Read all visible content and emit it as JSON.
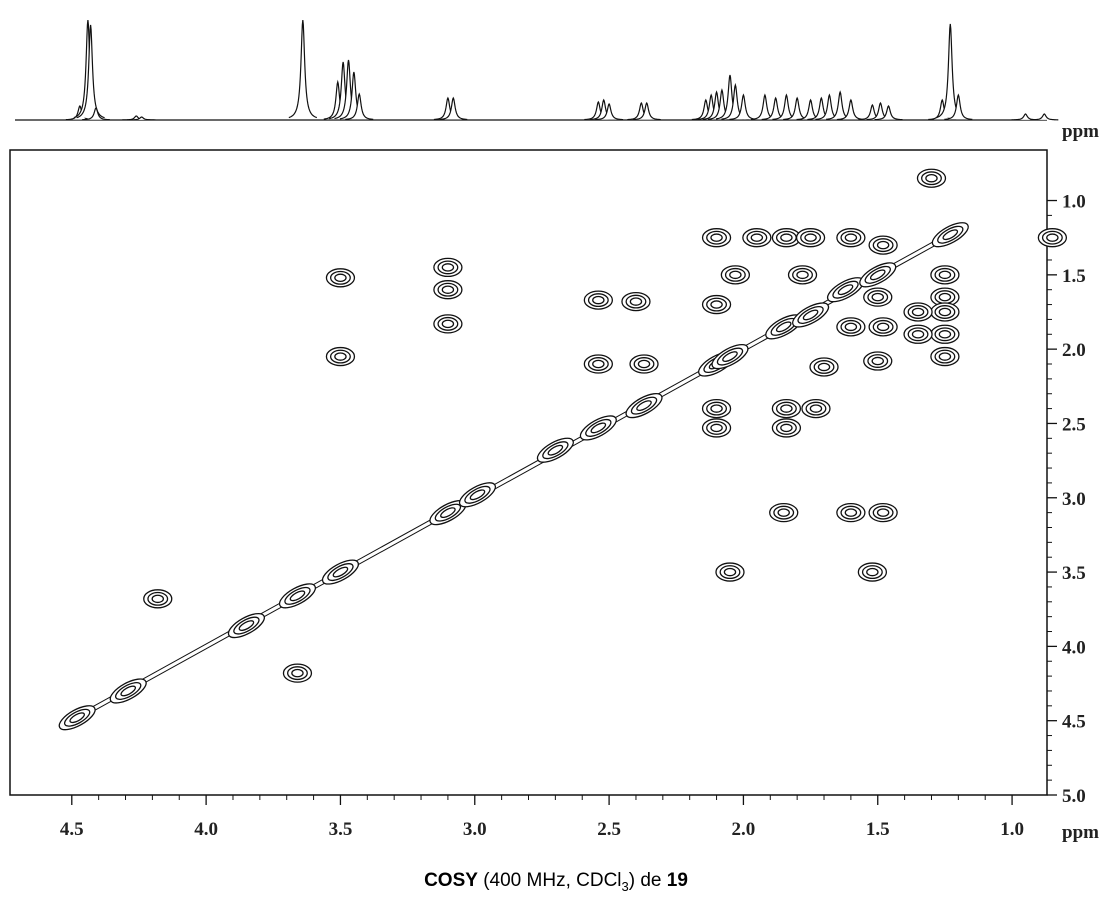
{
  "chart_data": {
    "type": "cosy",
    "caption": [
      "COSY",
      " (400 MHz, CDCl",
      "3",
      ") de ",
      "19"
    ],
    "x_label": "ppm",
    "y_label": "ppm",
    "xlim": [
      4.73,
      0.87
    ],
    "ylim": [
      0.66,
      5.0
    ],
    "xticks": [
      4.5,
      {
        "value": 4,
        "label": "4.0"
      },
      3.5,
      {
        "value": 3,
        "label": "3.0"
      },
      2.5,
      {
        "value": 2,
        "label": "2.0"
      },
      1.5,
      {
        "value": 1,
        "label": "1.0"
      }
    ],
    "yticks": [
      {
        "value": 1,
        "label": "1.0"
      },
      1.5,
      {
        "value": 2,
        "label": "2.0"
      },
      2.5,
      {
        "value": 3,
        "label": "3.0"
      },
      3.5,
      {
        "value": 4,
        "label": "4.0"
      },
      4.5,
      {
        "value": 5,
        "label": "5.0"
      }
    ],
    "spectrum": {
      "x": [
        4.47,
        4.44,
        4.43,
        4.41,
        4.26,
        4.24,
        3.64,
        3.51,
        3.49,
        3.47,
        3.45,
        3.43,
        3.1,
        3.08,
        2.54,
        2.52,
        2.5,
        2.38,
        2.36,
        2.14,
        2.12,
        2.1,
        2.08,
        2.05,
        2.03,
        2.0,
        1.92,
        1.88,
        1.84,
        1.8,
        1.75,
        1.71,
        1.68,
        1.64,
        1.6,
        1.52,
        1.49,
        1.46,
        1.26,
        1.23,
        1.2,
        0.95,
        0.88
      ],
      "values": [
        14,
        100,
        95,
        12,
        4,
        3,
        100,
        38,
        58,
        60,
        48,
        26,
        22,
        22,
        18,
        20,
        16,
        17,
        17,
        20,
        25,
        28,
        30,
        45,
        35,
        25,
        25,
        22,
        25,
        22,
        20,
        22,
        25,
        28,
        20,
        15,
        17,
        14,
        20,
        96,
        25,
        6,
        6
      ]
    },
    "peaks": {
      "x": [
        4.48,
        4.29,
        3.85,
        3.66,
        3.5,
        3.1,
        2.99,
        2.7,
        2.54,
        2.37,
        2.1,
        2.05,
        1.85,
        1.75,
        1.62,
        1.5,
        1.23,
        3.5,
        3.5,
        3.1,
        3.1,
        3.1,
        4.18,
        3.66,
        2.05,
        1.52,
        1.85,
        1.6,
        1.48,
        2.54,
        2.4,
        2.54,
        2.37,
        2.1,
        2.1,
        1.84,
        1.73,
        1.84,
        2.1,
        2.03,
        2.1,
        1.95,
        1.84,
        1.75,
        1.6,
        1.48,
        1.25,
        1.25,
        1.25,
        1.25,
        1.25,
        1.6,
        1.48,
        1.35,
        1.35,
        1.7,
        1.5,
        1.78,
        1.5,
        0.85,
        1.3
      ],
      "y": [
        4.48,
        4.3,
        3.86,
        3.66,
        3.5,
        3.1,
        2.98,
        2.68,
        2.53,
        2.38,
        2.1,
        2.05,
        1.85,
        1.77,
        1.6,
        1.5,
        1.23,
        1.52,
        2.05,
        1.45,
        1.6,
        1.83,
        3.68,
        4.18,
        3.5,
        3.5,
        3.1,
        3.1,
        3.1,
        1.67,
        1.68,
        2.1,
        2.1,
        2.4,
        2.53,
        2.4,
        2.4,
        2.53,
        1.25,
        1.5,
        1.7,
        1.25,
        1.25,
        1.25,
        1.25,
        1.3,
        1.5,
        1.65,
        1.75,
        1.9,
        2.05,
        1.85,
        1.85,
        1.75,
        1.9,
        2.12,
        2.08,
        1.5,
        1.65,
        1.25,
        0.85
      ]
    }
  }
}
